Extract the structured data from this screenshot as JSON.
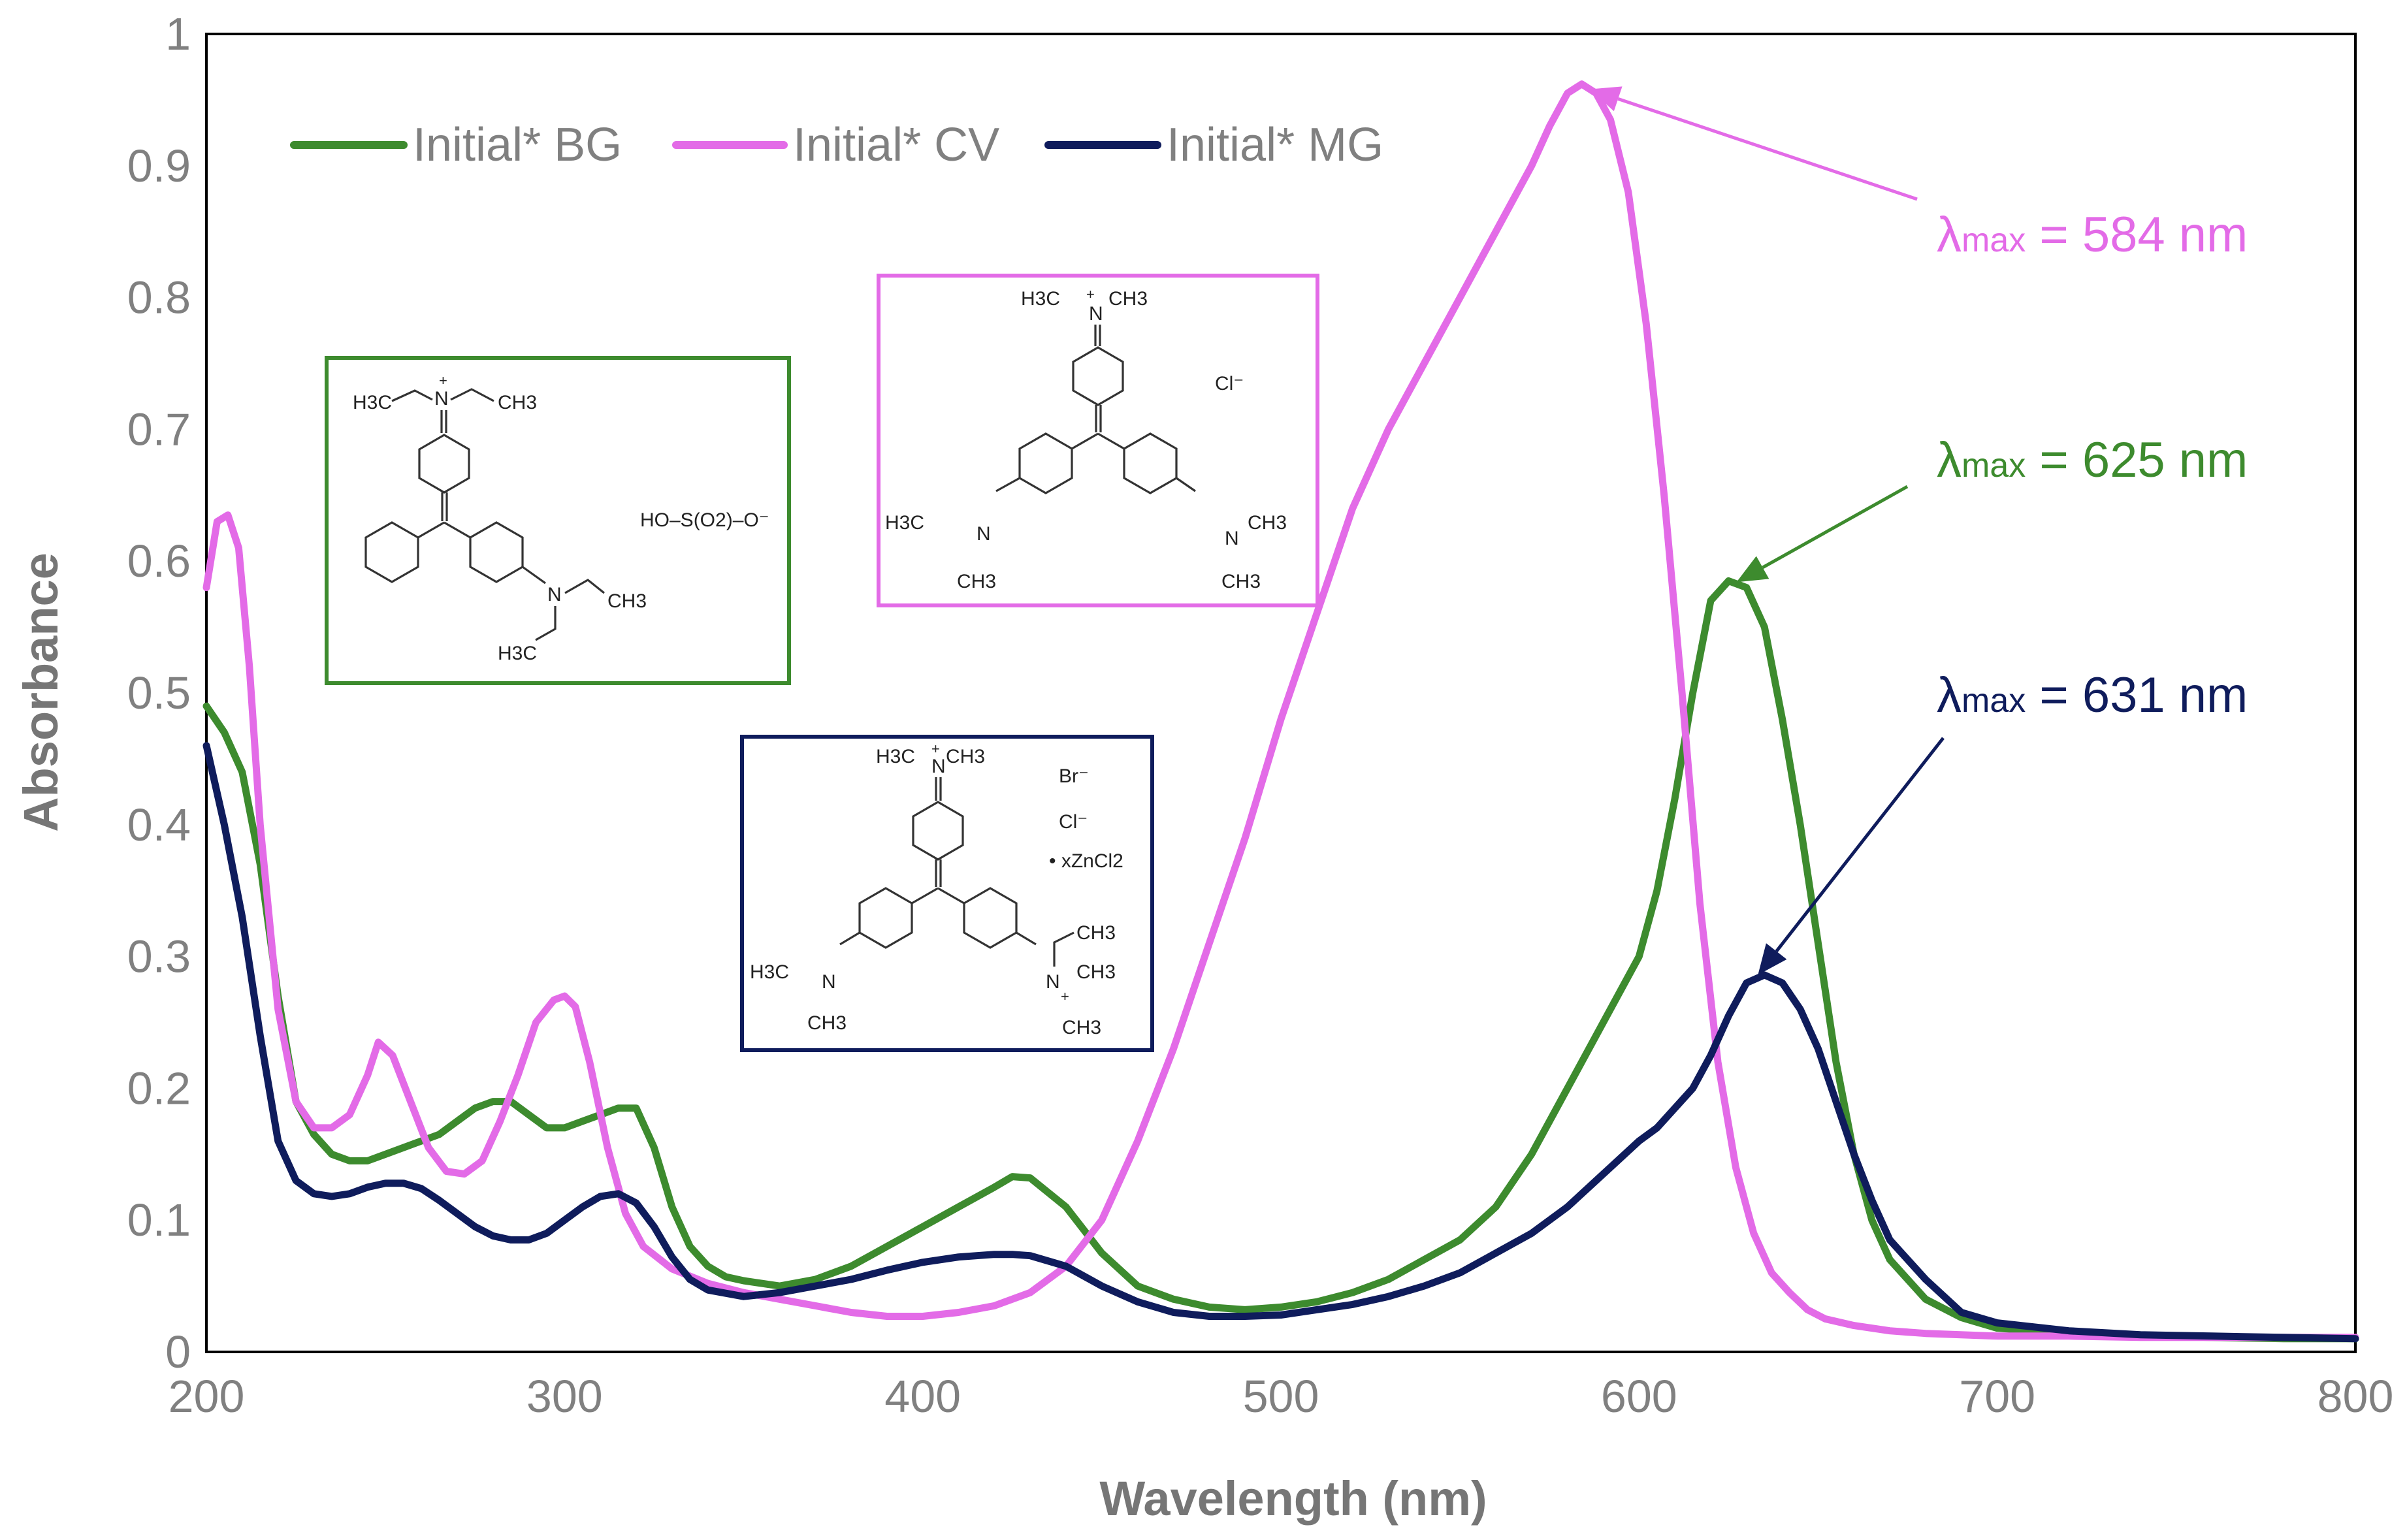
{
  "chart_data": {
    "type": "line",
    "title": "",
    "xlabel": "Wavelength (nm)",
    "ylabel": "Absorbance",
    "xlim": [
      200,
      800
    ],
    "ylim": [
      0,
      1
    ],
    "xticks": [
      200,
      300,
      400,
      500,
      600,
      700,
      800
    ],
    "yticks": [
      0,
      0.1,
      0.2,
      0.3,
      0.4,
      0.5,
      0.6,
      0.7,
      0.8,
      0.9,
      1
    ],
    "ytick_labels": [
      "0",
      "0.1",
      "0.2",
      "0.3",
      "0.4",
      "0.5",
      "0.6",
      "0.7",
      "0.8",
      "0.9",
      "1"
    ],
    "grid": false,
    "legend_position": "top-left",
    "series": [
      {
        "name": "Initial* BG",
        "color": "#3d8b2e",
        "x": [
          200,
          205,
          210,
          215,
          220,
          225,
          230,
          235,
          240,
          245,
          250,
          255,
          260,
          265,
          270,
          275,
          280,
          285,
          290,
          295,
          300,
          305,
          310,
          315,
          320,
          325,
          330,
          335,
          340,
          345,
          350,
          360,
          370,
          380,
          390,
          400,
          410,
          420,
          425,
          430,
          440,
          450,
          460,
          470,
          480,
          490,
          500,
          510,
          520,
          530,
          540,
          550,
          560,
          570,
          580,
          590,
          600,
          605,
          610,
          615,
          620,
          625,
          630,
          635,
          640,
          645,
          650,
          655,
          660,
          665,
          670,
          680,
          690,
          700,
          720,
          740,
          760,
          780,
          800
        ],
        "y": [
          0.49,
          0.47,
          0.44,
          0.37,
          0.27,
          0.19,
          0.165,
          0.15,
          0.145,
          0.145,
          0.15,
          0.155,
          0.16,
          0.165,
          0.175,
          0.185,
          0.19,
          0.19,
          0.18,
          0.17,
          0.17,
          0.175,
          0.18,
          0.185,
          0.185,
          0.155,
          0.11,
          0.08,
          0.065,
          0.057,
          0.054,
          0.05,
          0.055,
          0.065,
          0.08,
          0.095,
          0.11,
          0.125,
          0.133,
          0.132,
          0.11,
          0.075,
          0.05,
          0.04,
          0.034,
          0.032,
          0.034,
          0.038,
          0.045,
          0.055,
          0.07,
          0.085,
          0.11,
          0.15,
          0.2,
          0.25,
          0.3,
          0.35,
          0.42,
          0.5,
          0.57,
          0.585,
          0.58,
          0.55,
          0.48,
          0.4,
          0.31,
          0.22,
          0.15,
          0.1,
          0.07,
          0.04,
          0.026,
          0.018,
          0.014,
          0.012,
          0.011,
          0.01,
          0.01
        ]
      },
      {
        "name": "Initial* CV",
        "color": "#e36be7",
        "x": [
          200,
          203,
          206,
          209,
          212,
          215,
          220,
          225,
          230,
          235,
          240,
          245,
          248,
          252,
          257,
          262,
          267,
          272,
          277,
          282,
          287,
          292,
          297,
          300,
          303,
          307,
          312,
          317,
          322,
          330,
          340,
          350,
          360,
          370,
          380,
          390,
          400,
          410,
          420,
          430,
          440,
          450,
          460,
          470,
          480,
          490,
          500,
          510,
          520,
          530,
          540,
          550,
          560,
          570,
          575,
          580,
          584,
          588,
          592,
          597,
          602,
          607,
          612,
          617,
          622,
          627,
          632,
          637,
          642,
          647,
          652,
          660,
          670,
          680,
          700,
          720,
          740,
          760,
          780,
          800
        ],
        "y": [
          0.58,
          0.63,
          0.635,
          0.61,
          0.52,
          0.4,
          0.26,
          0.19,
          0.17,
          0.17,
          0.18,
          0.21,
          0.235,
          0.225,
          0.19,
          0.155,
          0.137,
          0.135,
          0.145,
          0.175,
          0.21,
          0.25,
          0.267,
          0.27,
          0.262,
          0.22,
          0.155,
          0.105,
          0.08,
          0.063,
          0.052,
          0.045,
          0.04,
          0.035,
          0.03,
          0.027,
          0.027,
          0.03,
          0.035,
          0.045,
          0.065,
          0.1,
          0.16,
          0.23,
          0.31,
          0.39,
          0.48,
          0.56,
          0.64,
          0.7,
          0.75,
          0.8,
          0.85,
          0.9,
          0.93,
          0.955,
          0.962,
          0.955,
          0.935,
          0.88,
          0.78,
          0.65,
          0.5,
          0.34,
          0.22,
          0.14,
          0.09,
          0.06,
          0.045,
          0.032,
          0.025,
          0.02,
          0.016,
          0.014,
          0.012,
          0.012,
          0.011,
          0.011,
          0.011,
          0.011
        ]
      },
      {
        "name": "Initial* MG",
        "color": "#0f1c5c",
        "x": [
          200,
          205,
          210,
          215,
          220,
          225,
          230,
          235,
          240,
          245,
          250,
          255,
          260,
          265,
          270,
          275,
          280,
          285,
          290,
          295,
          300,
          305,
          310,
          315,
          320,
          325,
          330,
          335,
          340,
          350,
          360,
          370,
          380,
          390,
          400,
          410,
          420,
          425,
          430,
          440,
          450,
          460,
          470,
          480,
          490,
          500,
          510,
          520,
          530,
          540,
          550,
          560,
          570,
          580,
          590,
          600,
          605,
          610,
          615,
          620,
          625,
          630,
          635,
          640,
          645,
          650,
          655,
          660,
          665,
          670,
          680,
          690,
          700,
          720,
          740,
          760,
          780,
          800
        ],
        "y": [
          0.46,
          0.4,
          0.33,
          0.24,
          0.16,
          0.13,
          0.12,
          0.118,
          0.12,
          0.125,
          0.128,
          0.128,
          0.124,
          0.115,
          0.105,
          0.095,
          0.088,
          0.085,
          0.085,
          0.09,
          0.1,
          0.11,
          0.118,
          0.12,
          0.113,
          0.095,
          0.072,
          0.055,
          0.047,
          0.042,
          0.045,
          0.05,
          0.055,
          0.062,
          0.068,
          0.072,
          0.074,
          0.074,
          0.073,
          0.065,
          0.05,
          0.038,
          0.03,
          0.027,
          0.027,
          0.028,
          0.032,
          0.036,
          0.042,
          0.05,
          0.06,
          0.075,
          0.09,
          0.11,
          0.135,
          0.16,
          0.17,
          0.185,
          0.2,
          0.225,
          0.255,
          0.28,
          0.286,
          0.28,
          0.26,
          0.23,
          0.19,
          0.15,
          0.115,
          0.085,
          0.055,
          0.03,
          0.022,
          0.016,
          0.013,
          0.012,
          0.011,
          0.01
        ]
      }
    ],
    "annotations": [
      {
        "name": "cv-peak",
        "color": "#e36be7",
        "lambda": "λ",
        "sub": "max",
        "rest": " = 584 nm",
        "target_x": 584,
        "target_y": 0.962
      },
      {
        "name": "bg-peak",
        "color": "#3d8b2e",
        "lambda": "λ",
        "sub": "max",
        "rest": " = 625 nm",
        "target_x": 625,
        "target_y": 0.588
      },
      {
        "name": "mg-peak",
        "color": "#0f1c5c",
        "lambda": "λ",
        "sub": "max",
        "rest": " = 631 nm",
        "target_x": 631,
        "target_y": 0.29
      }
    ]
  },
  "structures": {
    "bg": {
      "border_color": "#3d8b2e",
      "labels": {
        "h3c_top": "H3C",
        "n_top": "N",
        "plus": "+",
        "ch3_top": "CH3",
        "n_right": "N",
        "ch3_right": "CH3",
        "h3c_bottom": "H3C",
        "anion": "HO–S(O2)–O⁻"
      }
    },
    "cv": {
      "border_color": "#e36be7",
      "labels": {
        "h3c_top": "H3C",
        "n_top": "N",
        "plus": "+",
        "ch3_top": "CH3",
        "counter": "Cl⁻",
        "h3c_left": "H3C",
        "n_left": "N",
        "ch3_left": "CH3",
        "n_right": "N",
        "ch3_right1": "CH3",
        "ch3_right2": "CH3"
      }
    },
    "mg": {
      "border_color": "#0f1c5c",
      "labels": {
        "h3c_top": "H3C",
        "n_top": "N",
        "plus": "+",
        "ch3_top": "CH3",
        "br": "Br⁻",
        "cl": "Cl⁻",
        "zn": "• xZnCl2",
        "h3c_left": "H3C",
        "n_left": "N",
        "ch3_left": "CH3",
        "n_right": "N",
        "plus_right": "+",
        "ch3_r1": "CH3",
        "ch3_r2": "CH3",
        "ch3_r3": "CH3"
      }
    }
  }
}
